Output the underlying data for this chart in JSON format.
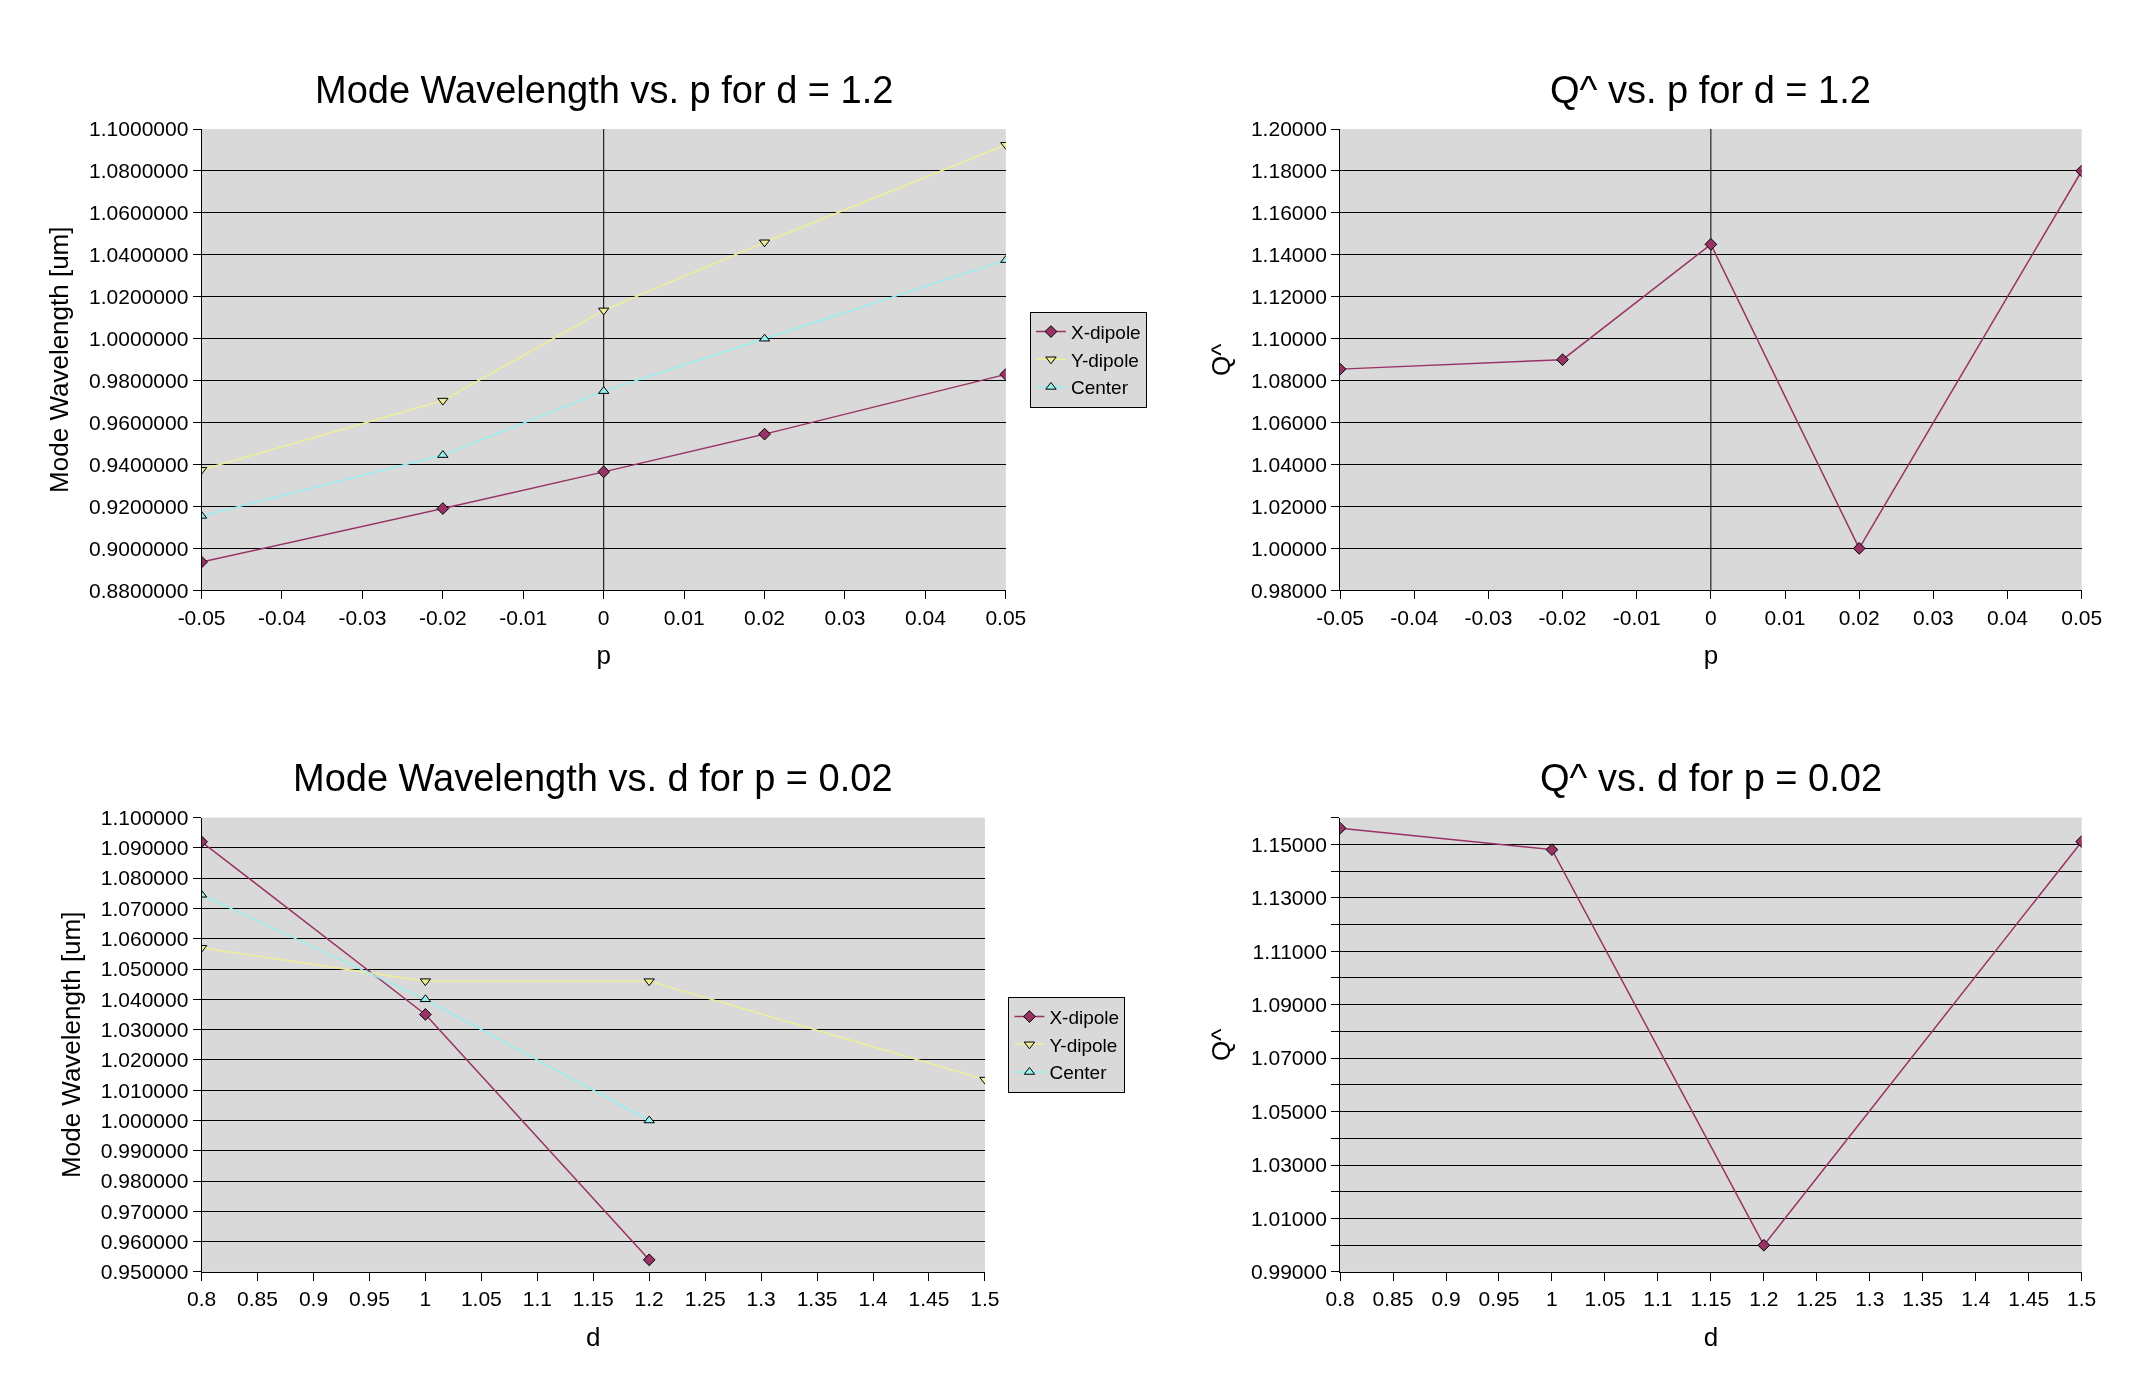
{
  "chart_data": [
    {
      "type": "line",
      "title": "Mode Wavelength vs. p for d = 1.2",
      "xlabel": "p",
      "ylabel": "Mode Wavelength [um]",
      "x": [
        -0.05,
        -0.02,
        0,
        0.02,
        0.05
      ],
      "series": [
        {
          "name": "X-dipole",
          "color": "#993366",
          "marker": "diamond",
          "values": [
            0.8935,
            0.919,
            0.9365,
            0.9545,
            0.983
          ]
        },
        {
          "name": "Y-dipole",
          "color": "#eeee99",
          "marker": "triangle-down",
          "values": [
            0.9375,
            0.9705,
            1.0135,
            1.046,
            1.0925
          ]
        },
        {
          "name": "Center",
          "color": "#99eeee",
          "marker": "triangle",
          "values": [
            0.9155,
            0.9445,
            0.975,
            1.0,
            1.0375
          ]
        }
      ],
      "xlim": [
        -0.05,
        0.05
      ],
      "xticks": [
        -0.05,
        -0.04,
        -0.03,
        -0.02,
        -0.01,
        0,
        0.01,
        0.02,
        0.03,
        0.04,
        0.05
      ],
      "ylim": [
        0.88,
        1.1
      ],
      "yticks": [
        {
          "value": 0.88,
          "label": "0.8800000"
        },
        {
          "value": 0.9,
          "label": "0.9000000"
        },
        {
          "value": 0.92,
          "label": "0.9200000"
        },
        {
          "value": 0.94,
          "label": "0.9400000"
        },
        {
          "value": 0.96,
          "label": "0.9600000"
        },
        {
          "value": 0.98,
          "label": "0.9800000"
        },
        {
          "value": 1.0,
          "label": "1.0000000"
        },
        {
          "value": 1.02,
          "label": "1.0200000"
        },
        {
          "value": 1.04,
          "label": "1.0400000"
        },
        {
          "value": 1.06,
          "label": "1.0600000"
        },
        {
          "value": 1.08,
          "label": "1.0800000"
        },
        {
          "value": 1.1,
          "label": "1.1000000"
        }
      ],
      "grid": "y",
      "legend": "right",
      "ref_lines": [
        {
          "axis": "x",
          "value": 0
        }
      ]
    },
    {
      "type": "line",
      "title": "Q^ vs. p for d = 1.2",
      "xlabel": "p",
      "ylabel": "Q^",
      "x": [
        -0.05,
        -0.02,
        0,
        0.02,
        0.05
      ],
      "series": [
        {
          "color": "#993366",
          "marker": "diamond",
          "values": [
            1.0855,
            1.09,
            1.145,
            1.0,
            1.18
          ]
        }
      ],
      "xlim": [
        -0.05,
        0.05
      ],
      "xticks": [
        -0.05,
        -0.04,
        -0.03,
        -0.02,
        -0.01,
        0,
        0.01,
        0.02,
        0.03,
        0.04,
        0.05
      ],
      "ylim": [
        0.98,
        1.2
      ],
      "yticks": [
        {
          "value": 0.98,
          "label": "0.98000"
        },
        {
          "value": 1.0,
          "label": "1.00000"
        },
        {
          "value": 1.02,
          "label": "1.02000"
        },
        {
          "value": 1.04,
          "label": "1.04000"
        },
        {
          "value": 1.06,
          "label": "1.06000"
        },
        {
          "value": 1.08,
          "label": "1.08000"
        },
        {
          "value": 1.1,
          "label": "1.10000"
        },
        {
          "value": 1.12,
          "label": "1.12000"
        },
        {
          "value": 1.14,
          "label": "1.14000"
        },
        {
          "value": 1.16,
          "label": "1.16000"
        },
        {
          "value": 1.18,
          "label": "1.18000"
        },
        {
          "value": 1.2,
          "label": "1.20000"
        }
      ],
      "grid": "y",
      "ref_lines": [
        {
          "axis": "x",
          "value": 0
        }
      ]
    },
    {
      "type": "line",
      "title": "Mode Wavelength vs. d for p = 0.02",
      "xlabel": "d",
      "ylabel": "Mode Wavelength [um]",
      "x": [
        0.8,
        1.0,
        1.2,
        1.5
      ],
      "series": [
        {
          "name": "X-dipole",
          "color": "#993366",
          "marker": "diamond",
          "values": [
            1.092,
            1.035,
            0.954,
            null
          ]
        },
        {
          "name": "Y-dipole",
          "color": "#eeee99",
          "marker": "triangle-down",
          "values": [
            1.057,
            1.046,
            1.046,
            1.0135
          ]
        },
        {
          "name": "Center",
          "color": "#99eeee",
          "marker": "triangle",
          "values": [
            1.0745,
            1.04,
            1.0,
            null
          ]
        }
      ],
      "xlim": [
        0.8,
        1.5
      ],
      "xticks": [
        0.8,
        0.85,
        0.9,
        0.95,
        1,
        1.05,
        1.1,
        1.15,
        1.2,
        1.25,
        1.3,
        1.35,
        1.4,
        1.45,
        1.5
      ],
      "ylim": [
        0.95,
        1.1
      ],
      "yticks": [
        {
          "value": 0.95,
          "label": "0.950000"
        },
        {
          "value": 0.96,
          "label": "0.960000"
        },
        {
          "value": 0.97,
          "label": "0.970000"
        },
        {
          "value": 0.98,
          "label": "0.980000"
        },
        {
          "value": 0.99,
          "label": "0.990000"
        },
        {
          "value": 1.0,
          "label": "1.000000"
        },
        {
          "value": 1.01,
          "label": "1.010000"
        },
        {
          "value": 1.02,
          "label": "1.020000"
        },
        {
          "value": 1.03,
          "label": "1.030000"
        },
        {
          "value": 1.04,
          "label": "1.040000"
        },
        {
          "value": 1.05,
          "label": "1.050000"
        },
        {
          "value": 1.06,
          "label": "1.060000"
        },
        {
          "value": 1.07,
          "label": "1.070000"
        },
        {
          "value": 1.08,
          "label": "1.080000"
        },
        {
          "value": 1.09,
          "label": "1.090000"
        },
        {
          "value": 1.1,
          "label": "1.100000"
        }
      ],
      "grid": "y",
      "legend": "right"
    },
    {
      "type": "line",
      "title": "Q^ vs. d for p = 0.02",
      "xlabel": "d",
      "ylabel": "Q^",
      "x": [
        0.8,
        1.0,
        1.2,
        1.5
      ],
      "series": [
        {
          "color": "#993366",
          "marker": "diamond",
          "values": [
            1.156,
            1.148,
            1.0,
            1.151
          ]
        }
      ],
      "xlim": [
        0.8,
        1.5
      ],
      "xticks": [
        0.8,
        0.85,
        0.9,
        0.95,
        1,
        1.05,
        1.1,
        1.15,
        1.2,
        1.25,
        1.3,
        1.35,
        1.4,
        1.45,
        1.5
      ],
      "ylim": [
        0.99,
        1.16
      ],
      "yticks": [
        {
          "value": 0.99,
          "label": "0.99000"
        },
        {
          "value": 1.0,
          "label": null
        },
        {
          "value": 1.01,
          "label": "1.01000"
        },
        {
          "value": 1.02,
          "label": null
        },
        {
          "value": 1.03,
          "label": "1.03000"
        },
        {
          "value": 1.04,
          "label": null
        },
        {
          "value": 1.05,
          "label": "1.05000"
        },
        {
          "value": 1.06,
          "label": null
        },
        {
          "value": 1.07,
          "label": "1.07000"
        },
        {
          "value": 1.08,
          "label": null
        },
        {
          "value": 1.09,
          "label": "1.09000"
        },
        {
          "value": 1.1,
          "label": null
        },
        {
          "value": 1.11,
          "label": "1.11000"
        },
        {
          "value": 1.12,
          "label": null
        },
        {
          "value": 1.13,
          "label": "1.13000"
        },
        {
          "value": 1.14,
          "label": null
        },
        {
          "value": 1.15,
          "label": "1.15000"
        },
        {
          "value": 1.16,
          "label": null
        }
      ],
      "grid": "y"
    }
  ]
}
